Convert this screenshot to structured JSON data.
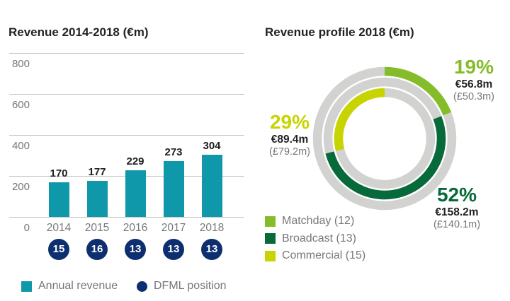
{
  "colors": {
    "teal": "#0f98a9",
    "navy": "#0d2e6f",
    "matchday": "#85bc2a",
    "broadcast": "#076a3a",
    "commercial": "#c8d400",
    "ring_gray": "#d2d2d0",
    "grid_gray": "#c6c6c6",
    "text_dark": "#232323",
    "text_gray": "#75787b"
  },
  "left_chart": {
    "title": "Revenue 2014-2018 (€m)",
    "legend": [
      {
        "label": "Annual revenue",
        "marker": "square",
        "color_key": "teal"
      },
      {
        "label": "DFML position",
        "marker": "circle",
        "color_key": "navy"
      }
    ]
  },
  "right_chart": {
    "title": "Revenue profile 2018 (€m)",
    "callouts": [
      {
        "segment": "Matchday",
        "pct_label": "19%",
        "eur": "€56.8m",
        "gbp": "(£50.3m)"
      },
      {
        "segment": "Broadcast",
        "pct_label": "52%",
        "eur": "€158.2m",
        "gbp": "(£140.1m)"
      },
      {
        "segment": "Commercial",
        "pct_label": "29%",
        "eur": "€89.4m",
        "gbp": "(£79.2m)"
      }
    ],
    "legend": [
      "Matchday (12)",
      "Broadcast (13)",
      "Commercial (15)"
    ]
  },
  "chart_data": [
    {
      "type": "bar",
      "title": "Revenue 2014-2018 (€m)",
      "categories": [
        "2014",
        "2015",
        "2016",
        "2017",
        "2018"
      ],
      "series": [
        {
          "name": "Annual revenue",
          "values": [
            170,
            177,
            229,
            273,
            304
          ]
        },
        {
          "name": "DFML position",
          "values": [
            15,
            16,
            13,
            13,
            13
          ]
        }
      ],
      "ylabel": "",
      "xlabel": "",
      "ylim": [
        0,
        800
      ],
      "yticks": [
        800,
        600,
        400,
        200,
        0
      ],
      "grid": true,
      "legend_position": "bottom-left"
    },
    {
      "type": "pie",
      "subtype": "multi-ring-donut",
      "title": "Revenue profile 2018 (€m)",
      "labels": [
        "Matchday",
        "Broadcast",
        "Commercial"
      ],
      "values_pct": [
        19,
        52,
        29
      ],
      "values_eur_m": [
        56.8,
        158.2,
        89.4
      ],
      "values_gbp_m": [
        50.3,
        140.1,
        79.2
      ],
      "legend_entries": [
        "Matchday (12)",
        "Broadcast (13)",
        "Commercial (15)"
      ],
      "start_angle_deg": 0,
      "direction": "clockwise",
      "legend_position": "bottom-left"
    }
  ]
}
